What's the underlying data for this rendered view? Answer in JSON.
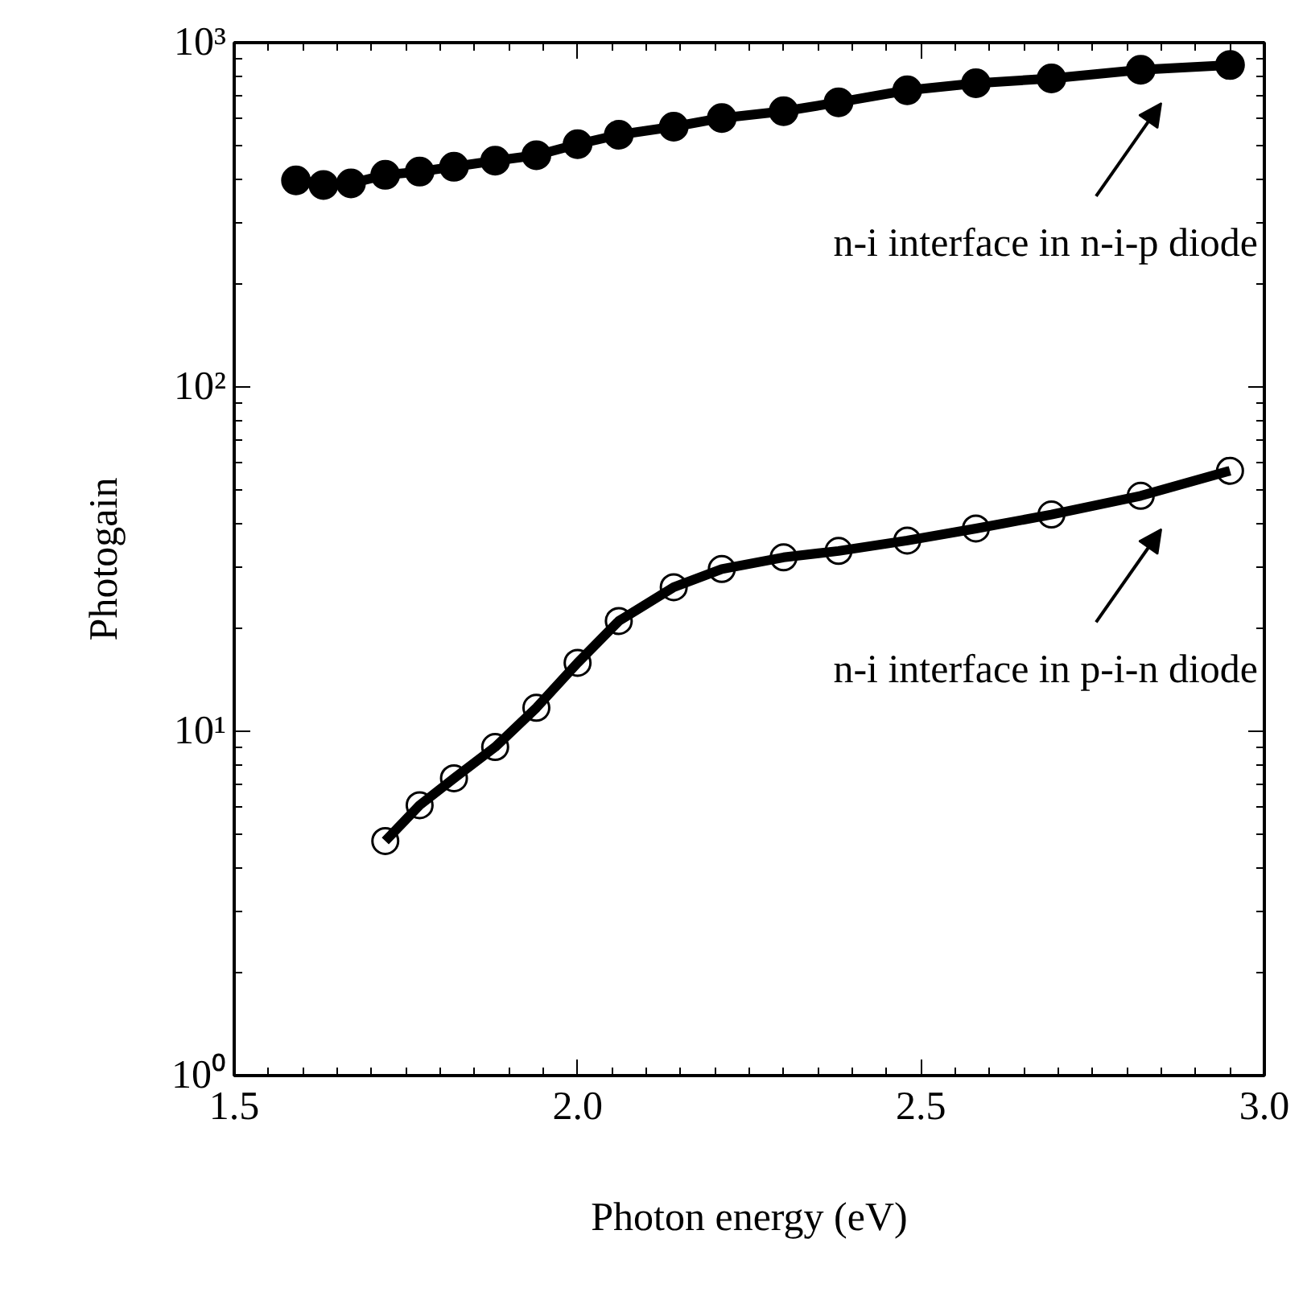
{
  "chart_data": {
    "type": "line",
    "xlabel": "Photon energy (eV)",
    "ylabel": "Photogain",
    "log": "y",
    "marker": "circle",
    "line_style": "solid",
    "grid": false,
    "xlim": [
      1.5,
      3.0
    ],
    "xticks": [
      1.5,
      {
        "value": 2.0,
        "label": "2.0"
      },
      2.5,
      {
        "value": 3.0,
        "label": "3.0"
      }
    ],
    "ylim": [
      1,
      1000
    ],
    "yticks": [
      {
        "value": 1,
        "label": "10⁰"
      },
      {
        "value": 10,
        "label": "10¹"
      },
      {
        "value": 100,
        "label": "10²"
      },
      {
        "value": 1000,
        "label": "10³"
      }
    ],
    "series": [
      {
        "color": "#000000",
        "x": [
          1.59,
          1.63,
          1.67,
          1.72,
          1.77,
          1.82,
          1.88,
          1.94,
          2.0,
          2.06,
          2.14,
          2.21,
          2.3,
          2.38,
          2.48,
          2.58,
          2.69,
          2.82,
          2.95
        ],
        "values": [
          398,
          386,
          390,
          413,
          422,
          436,
          454,
          471,
          507,
          540,
          570,
          604,
          632,
          671,
          727,
          762,
          787,
          834,
          861
        ]
      },
      {
        "color": "#000000",
        "x": [
          1.72,
          1.77,
          1.82,
          1.88,
          1.94,
          2.0,
          2.06,
          2.14,
          2.21,
          2.3,
          2.38,
          2.48,
          2.58,
          2.69,
          2.82,
          2.95
        ],
        "values": [
          4.8,
          6.1,
          7.3,
          9.0,
          11.7,
          15.8,
          20.9,
          26.2,
          29.6,
          32,
          33.4,
          35.8,
          38.8,
          42.6,
          48.3,
          57.1
        ]
      }
    ],
    "annotations": [
      "n-i interface in n-i-p diode",
      "n-i interface in p-i-n diode"
    ]
  }
}
